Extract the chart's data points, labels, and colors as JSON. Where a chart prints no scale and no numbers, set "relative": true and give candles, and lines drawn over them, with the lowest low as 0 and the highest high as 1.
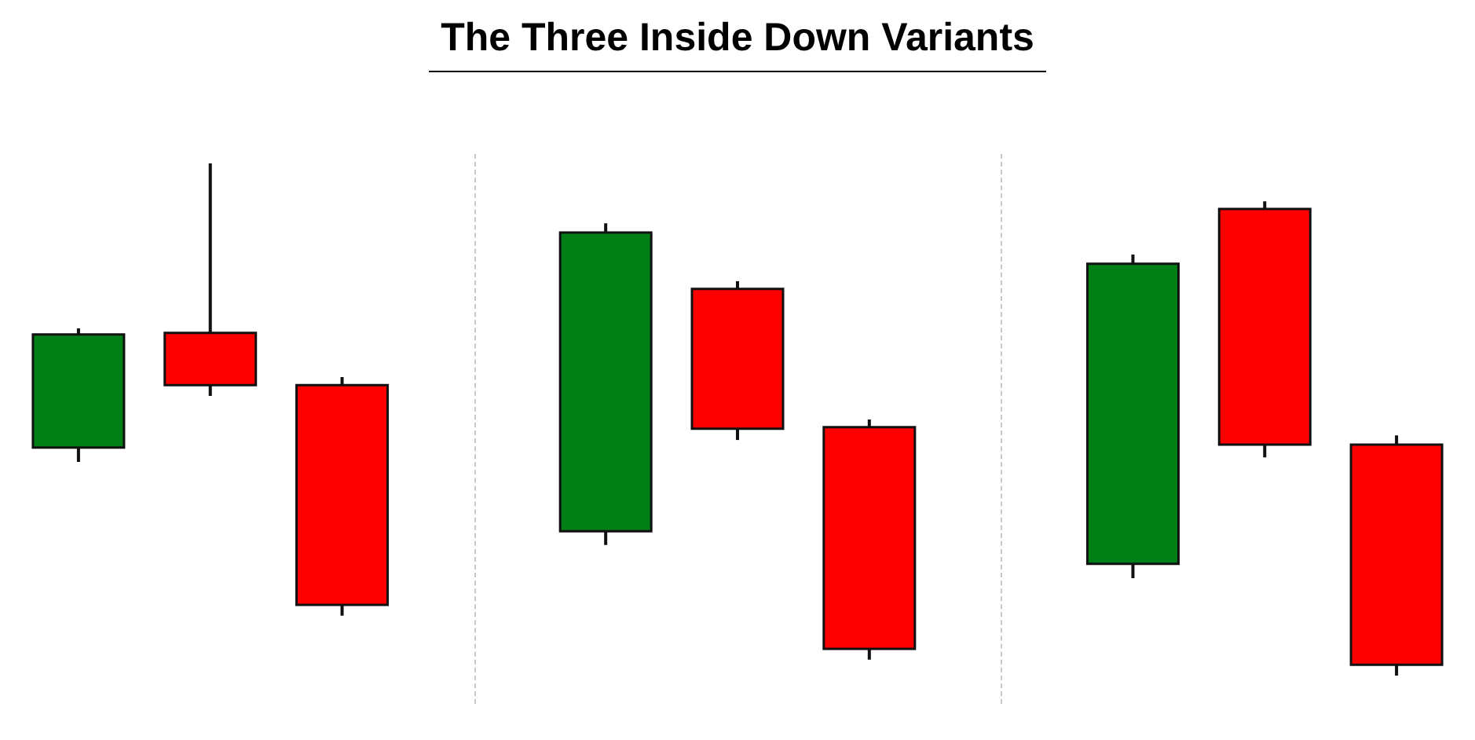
{
  "chart_data": {
    "type": "candlestick",
    "title": "The Three Inside Down Variants",
    "relative": true,
    "tick_labels": false,
    "categories": [
      null,
      null,
      null,
      null,
      null,
      null,
      null,
      null,
      null,
      null,
      null
    ],
    "ohlc": [
      [
        0.445,
        0.678,
        0.417,
        0.666
      ],
      [
        0.669,
        1,
        0.546,
        0.567
      ],
      [
        0.567,
        0.583,
        0.117,
        0.138
      ],
      null,
      [
        0.282,
        0.883,
        0.255,
        0.865
      ],
      [
        0.755,
        0.77,
        0.46,
        0.482
      ],
      [
        0.485,
        0.5,
        0.031,
        0.052
      ],
      null,
      [
        0.218,
        0.822,
        0.19,
        0.804
      ],
      [
        0.911,
        0.926,
        0.426,
        0.451
      ],
      [
        0.451,
        0.469,
        0,
        0.021
      ]
    ],
    "colors": [
      "#007f16",
      "#ff0000",
      "#ff0000",
      null,
      "#007f16",
      "#ff0000",
      "#ff0000",
      null,
      "#007f16",
      "#ff0000",
      "#ff0000"
    ]
  }
}
